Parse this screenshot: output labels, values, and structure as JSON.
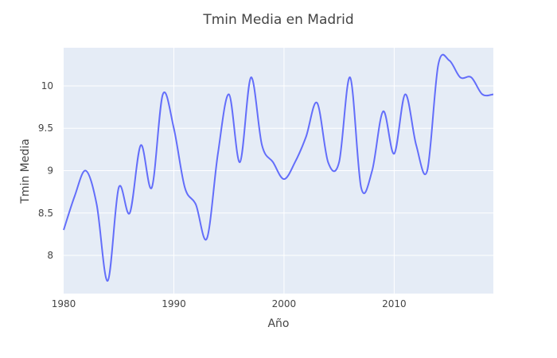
{
  "chart_data": {
    "type": "line",
    "title": "Tmin Media en Madrid",
    "xlabel": "Año",
    "ylabel": "Tmin Media",
    "xlim": [
      1980,
      2019
    ],
    "ylim": [
      7.55,
      10.45
    ],
    "x_ticks": [
      1980,
      1990,
      2000,
      2010
    ],
    "x_tick_labels": [
      "1980",
      "1990",
      "2000",
      "2010"
    ],
    "y_ticks": [
      8,
      8.5,
      9,
      9.5,
      10
    ],
    "y_tick_labels": [
      "8",
      "8.5",
      "9",
      "9.5",
      "10"
    ],
    "grid": true,
    "legend": "none",
    "colors": {
      "line": "#636efa",
      "plot_bg": "#e5ecf6",
      "grid": "#ffffff",
      "text": "#444444"
    },
    "series": [
      {
        "x": [
          1980,
          1981,
          1982,
          1983,
          1984,
          1985,
          1986,
          1987,
          1988,
          1989,
          1990,
          1991,
          1992,
          1993,
          1994,
          1995,
          1996,
          1997,
          1998,
          1999,
          2000,
          2001,
          2002,
          2003,
          2004,
          2005,
          2006,
          2007,
          2008,
          2009,
          2010,
          2011,
          2012,
          2013,
          2014,
          2015,
          2016,
          2017,
          2018,
          2019
        ],
        "values": [
          8.3,
          8.7,
          9.0,
          8.6,
          7.7,
          8.8,
          8.5,
          9.3,
          8.8,
          9.9,
          9.5,
          8.8,
          8.6,
          8.2,
          9.2,
          9.9,
          9.1,
          10.1,
          9.3,
          9.1,
          8.9,
          9.1,
          9.4,
          9.8,
          9.1,
          9.1,
          10.1,
          8.8,
          9.0,
          9.7,
          9.2,
          9.9,
          9.3,
          9.0,
          10.25,
          10.3,
          10.1,
          10.1,
          9.9,
          9.9
        ]
      }
    ]
  }
}
